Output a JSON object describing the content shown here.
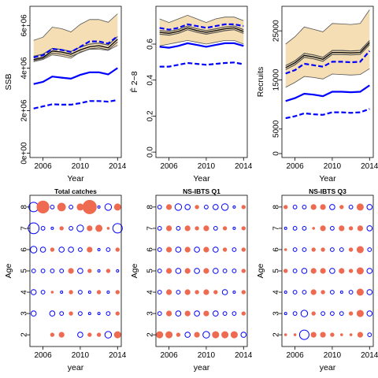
{
  "colors": {
    "band": "#f5deb3",
    "median": "#555555",
    "interval": "#0000ff",
    "pos_bubble": "#ee6a50",
    "neg_bubble": "#0000ff"
  },
  "chart_data": [
    {
      "type": "area",
      "xlabel": "Year",
      "ylabel": "SSB",
      "x": [
        2005,
        2006,
        2007,
        2008,
        2009,
        2010,
        2011,
        2012,
        2013,
        2014
      ],
      "xticks": [
        2006,
        2010,
        2014
      ],
      "yticks": [
        0,
        2000000,
        4000000,
        6000000
      ],
      "ytick_labels": [
        "0e+00",
        "2e+06",
        "4e+06",
        "6e+06"
      ],
      "xlim": [
        2004.6,
        2014.4
      ],
      "ylim": [
        -200000,
        6900000
      ],
      "band_upper": [
        5300000,
        5450000,
        5920000,
        5850000,
        5700000,
        6050000,
        6280000,
        6280000,
        6150000,
        6550000
      ],
      "band_lower": [
        4300000,
        4400000,
        4620000,
        4560000,
        4460000,
        4760000,
        4880000,
        4880000,
        4830000,
        5070000
      ],
      "median": [
        4400000,
        4500000,
        4800000,
        4750000,
        4650000,
        4850000,
        5000000,
        5050000,
        4950000,
        5350000
      ],
      "median_upper": [
        4550000,
        4650000,
        4920000,
        4870000,
        4780000,
        4980000,
        5120000,
        5170000,
        5080000,
        5480000
      ],
      "median_lower": [
        4350000,
        4450000,
        4700000,
        4650000,
        4550000,
        4730000,
        4900000,
        4950000,
        4850000,
        5230000
      ],
      "interval_upper": [
        4500000,
        4600000,
        4900000,
        4850000,
        4750000,
        5000000,
        5250000,
        5250000,
        5150000,
        5500000
      ],
      "estimate": [
        3250000,
        3350000,
        3600000,
        3550000,
        3500000,
        3680000,
        3800000,
        3800000,
        3700000,
        4000000
      ],
      "interval_lower": [
        2100000,
        2200000,
        2300000,
        2280000,
        2280000,
        2350000,
        2450000,
        2450000,
        2420000,
        2500000
      ]
    },
    {
      "type": "area",
      "xlabel": "Year",
      "ylabel": "F̄ 2−8",
      "x": [
        2005,
        2006,
        2007,
        2008,
        2009,
        2010,
        2011,
        2012,
        2013,
        2014
      ],
      "xticks": [
        2006,
        2010,
        2014
      ],
      "yticks": [
        0,
        0.2,
        0.4,
        0.6
      ],
      "ytick_labels": [
        "0.0",
        "0.2",
        "0.4",
        "0.6"
      ],
      "xlim": [
        2004.6,
        2014.4
      ],
      "ylim": [
        -0.03,
        0.81
      ],
      "band_upper": [
        0.74,
        0.72,
        0.74,
        0.76,
        0.74,
        0.72,
        0.74,
        0.75,
        0.75,
        0.73
      ],
      "band_lower": [
        0.59,
        0.6,
        0.61,
        0.62,
        0.61,
        0.6,
        0.61,
        0.62,
        0.62,
        0.6
      ],
      "median": [
        0.665,
        0.66,
        0.67,
        0.69,
        0.675,
        0.665,
        0.675,
        0.685,
        0.69,
        0.67
      ],
      "median_upper": [
        0.675,
        0.67,
        0.68,
        0.7,
        0.685,
        0.675,
        0.685,
        0.695,
        0.7,
        0.68
      ],
      "median_lower": [
        0.655,
        0.65,
        0.66,
        0.68,
        0.665,
        0.655,
        0.665,
        0.675,
        0.68,
        0.66
      ],
      "interval_upper": [
        0.69,
        0.68,
        0.69,
        0.71,
        0.7,
        0.69,
        0.7,
        0.71,
        0.71,
        0.7
      ],
      "estimate": [
        0.585,
        0.58,
        0.59,
        0.605,
        0.595,
        0.585,
        0.595,
        0.605,
        0.605,
        0.59
      ],
      "interval_lower": [
        0.475,
        0.475,
        0.485,
        0.495,
        0.49,
        0.485,
        0.49,
        0.495,
        0.498,
        0.488
      ]
    },
    {
      "type": "area",
      "xlabel": "Year",
      "ylabel": "Recruits",
      "x": [
        2005,
        2006,
        2007,
        2008,
        2009,
        2010,
        2011,
        2012,
        2013,
        2014
      ],
      "xticks": [
        2006,
        2010,
        2014
      ],
      "yticks": [
        0,
        5000,
        15000,
        25000
      ],
      "ytick_labels": [
        "0",
        "5000",
        "15000",
        "25000"
      ],
      "xlim": [
        2004.6,
        2014.4
      ],
      "ylim": [
        -800,
        30000
      ],
      "band_upper": [
        22300,
        23800,
        25800,
        25300,
        24800,
        26500,
        26400,
        26300,
        26500,
        29300
      ],
      "band_lower": [
        13500,
        14500,
        15700,
        15500,
        15200,
        16200,
        16100,
        16000,
        16100,
        17300
      ],
      "median": [
        17500,
        18500,
        20000,
        19700,
        19200,
        20600,
        20600,
        20500,
        20600,
        22600
      ],
      "median_upper": [
        17900,
        18900,
        20400,
        20100,
        19600,
        21000,
        21000,
        20900,
        21000,
        23000
      ],
      "median_lower": [
        17100,
        18100,
        19600,
        19300,
        18800,
        20200,
        20200,
        20100,
        20200,
        22200
      ],
      "interval_upper": [
        16300,
        17000,
        18300,
        18000,
        17700,
        18700,
        18700,
        18600,
        18700,
        20900
      ],
      "estimate": [
        10700,
        11300,
        12200,
        12000,
        11700,
        12600,
        12600,
        12500,
        12600,
        13900
      ],
      "interval_lower": [
        7200,
        7600,
        8200,
        8000,
        7900,
        8400,
        8400,
        8300,
        8400,
        9100
      ]
    },
    {
      "type": "scatter",
      "title": "Total catches",
      "xlabel": "year",
      "ylabel": "Age",
      "x": [
        2005,
        2006,
        2007,
        2008,
        2009,
        2010,
        2011,
        2012,
        2013,
        2014
      ],
      "xticks": [
        2006,
        2010,
        2014
      ],
      "yticks": [
        2,
        3,
        4,
        5,
        6,
        7,
        8
      ],
      "xlim": [
        2004.6,
        2014.4
      ],
      "ylim": [
        1.45,
        8.55
      ],
      "ages": [
        8,
        7,
        6,
        5,
        4,
        3,
        2
      ],
      "residuals": [
        [
          -6,
          8,
          -2,
          5,
          -2,
          4,
          9,
          -1,
          -4,
          4
        ],
        [
          -7,
          -2,
          -1,
          2,
          -2,
          -4,
          3,
          4,
          1,
          -6
        ],
        [
          -4,
          -3,
          2,
          -3,
          -3,
          -2,
          3,
          -1,
          -2,
          2
        ],
        [
          -2,
          -2,
          -2,
          -2,
          3,
          -3,
          2,
          -1,
          2,
          -1
        ],
        [
          -3,
          -2,
          1,
          -1,
          2,
          -2,
          -1,
          2,
          -1,
          2
        ],
        [
          -3,
          0,
          -3,
          -2,
          2,
          -2,
          -1,
          -1,
          -2,
          2
        ],
        [
          0,
          0,
          2,
          3,
          0,
          -3,
          2,
          2,
          -4,
          4
        ]
      ]
    },
    {
      "type": "scatter",
      "title": "NS-IBTS Q1",
      "xlabel": "year",
      "ylabel": "Age",
      "x": [
        2005,
        2006,
        2007,
        2008,
        2009,
        2010,
        2011,
        2012,
        2013,
        2014
      ],
      "xticks": [
        2006,
        2010,
        2014
      ],
      "yticks": [
        2,
        3,
        4,
        5,
        6,
        7,
        8
      ],
      "xlim": [
        2004.6,
        2014.4
      ],
      "ylim": [
        1.45,
        8.55
      ],
      "ages": [
        8,
        7,
        6,
        5,
        4,
        3,
        2
      ],
      "residuals": [
        [
          -2,
          3,
          -4,
          -3,
          2,
          -2,
          -3,
          -4,
          -1,
          2
        ],
        [
          -2,
          3,
          -2,
          3,
          2,
          3,
          -2,
          2,
          -1,
          2
        ],
        [
          -2,
          3,
          -3,
          3,
          -3,
          3,
          -3,
          2,
          -2,
          2
        ],
        [
          -2,
          3,
          -3,
          3,
          -3,
          3,
          -3,
          -2,
          -2,
          2
        ],
        [
          -2,
          3,
          -2,
          3,
          2,
          3,
          2,
          -3,
          -1,
          2
        ],
        [
          -2,
          3,
          -3,
          3,
          -3,
          3,
          -3,
          -2,
          -2,
          2
        ],
        [
          4,
          4,
          2,
          -3,
          3,
          -4,
          4,
          4,
          4,
          -3
        ]
      ]
    },
    {
      "type": "scatter",
      "title": "NS-IBTS Q3",
      "xlabel": "year",
      "ylabel": "Age",
      "x": [
        2005,
        2006,
        2007,
        2008,
        2009,
        2010,
        2011,
        2012,
        2013,
        2014
      ],
      "xticks": [
        2006,
        2010,
        2014
      ],
      "yticks": [
        2,
        3,
        4,
        5,
        6,
        7,
        8
      ],
      "xlim": [
        2004.6,
        2014.4
      ],
      "ylim": [
        1.45,
        8.55
      ],
      "ages": [
        8,
        7,
        6,
        5,
        4,
        3,
        2
      ],
      "residuals": [
        [
          2,
          -2,
          -2,
          3,
          3,
          -3,
          2,
          -2,
          4,
          -3
        ],
        [
          -1,
          -2,
          -2,
          1,
          3,
          -2,
          3,
          2,
          3,
          -3
        ],
        [
          1,
          -2,
          -2,
          2,
          2,
          -2,
          -2,
          2,
          4,
          -2
        ],
        [
          2,
          -2,
          -3,
          3,
          3,
          -3,
          3,
          2,
          4,
          -3
        ],
        [
          -1,
          -2,
          -2,
          3,
          2,
          -2,
          -1,
          -2,
          4,
          -3
        ],
        [
          -1,
          -2,
          -4,
          2,
          -2,
          -2,
          -2,
          2,
          4,
          -3
        ],
        [
          1,
          1,
          -6,
          3,
          3,
          2,
          1,
          1,
          3,
          -2
        ]
      ]
    }
  ]
}
